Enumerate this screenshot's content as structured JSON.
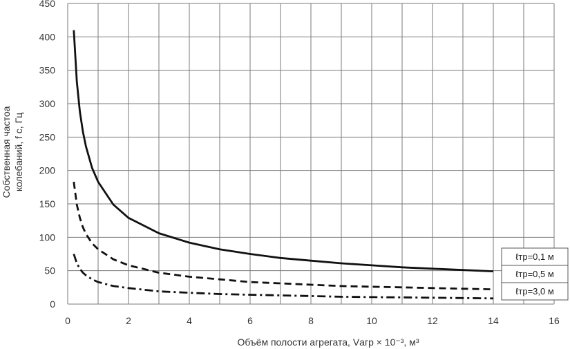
{
  "chart_data": {
    "type": "line",
    "title": "",
    "xlabel": "Объём полости агрегата, Vагр × 10⁻³, м³",
    "ylabel_lines": [
      "Собственная частоа",
      "колебаний, f с, Гц"
    ],
    "xlim": [
      0,
      16
    ],
    "ylim": [
      0,
      450
    ],
    "xticks": [
      "0",
      "2",
      "4",
      "6",
      "8",
      "10",
      "12",
      "14",
      "16"
    ],
    "yticks": [
      "0",
      "50",
      "100",
      "150",
      "200",
      "250",
      "300",
      "350",
      "400",
      "450"
    ],
    "grid": true,
    "legend_position": "right",
    "series": [
      {
        "name": "ℓтр=0,1 м",
        "style": "solid",
        "color": "#111111",
        "x": [
          0.2,
          0.3,
          0.4,
          0.5,
          0.6,
          0.8,
          1,
          1.5,
          2,
          3,
          4,
          5,
          6,
          7,
          8,
          9,
          10,
          11,
          12,
          13,
          14
        ],
        "y": [
          410,
          333,
          288,
          258,
          236,
          204,
          183,
          149,
          129,
          106,
          92,
          82,
          75,
          69,
          65,
          61,
          58,
          55,
          53,
          51,
          49
        ]
      },
      {
        "name": "ℓтр=0,5 м",
        "style": "dashed",
        "color": "#111111",
        "x": [
          0.2,
          0.3,
          0.4,
          0.5,
          0.6,
          0.8,
          1,
          1.5,
          2,
          3,
          4,
          5,
          6,
          7,
          8,
          9,
          10,
          11,
          12,
          13,
          14
        ],
        "y": [
          183,
          149,
          129,
          115,
          105,
          91,
          82,
          67,
          58,
          47,
          41,
          37,
          33,
          31,
          29,
          27,
          26,
          25,
          24,
          23,
          22
        ]
      },
      {
        "name": "ℓтр=3,0 м",
        "style": "dashdot",
        "color": "#111111",
        "x": [
          0.2,
          0.3,
          0.4,
          0.5,
          0.6,
          0.8,
          1,
          1.5,
          2,
          3,
          4,
          5,
          6,
          7,
          8,
          9,
          10,
          11,
          12,
          13,
          14
        ],
        "y": [
          75,
          61,
          53,
          47,
          43,
          37,
          33,
          27,
          24,
          19,
          17,
          15,
          14,
          13,
          12,
          11,
          10.5,
          10,
          9.5,
          9,
          8.5
        ]
      }
    ]
  }
}
